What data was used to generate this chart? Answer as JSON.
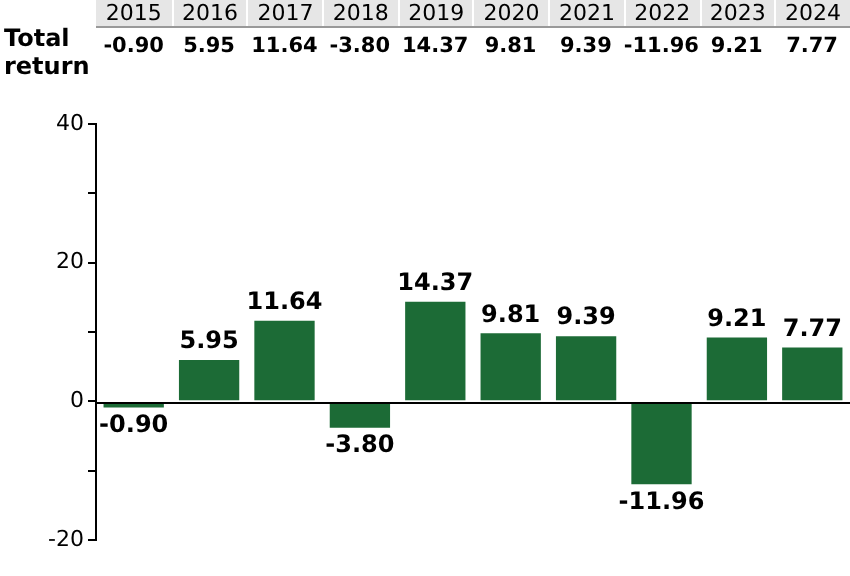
{
  "chart_data": {
    "type": "bar",
    "annotations": [
      "Total return"
    ],
    "categories": [
      "2015",
      "2016",
      "2017",
      "2018",
      "2019",
      "2020",
      "2021",
      "2022",
      "2023",
      "2024"
    ],
    "values": [
      -0.9,
      5.95,
      11.64,
      -3.8,
      14.37,
      9.81,
      9.39,
      -11.96,
      9.21,
      7.77
    ],
    "value_labels": [
      "-0.90",
      "5.95",
      "11.64",
      "-3.80",
      "14.37",
      "9.81",
      "9.39",
      "-11.96",
      "9.21",
      "7.77"
    ],
    "color": "#1c6b36",
    "ylim": [
      -20,
      40
    ],
    "yticks": [
      -20,
      {
        "value": -10,
        "label": null
      },
      0,
      {
        "value": 10,
        "label": null
      },
      20,
      {
        "value": 30,
        "label": null
      },
      40
    ]
  }
}
